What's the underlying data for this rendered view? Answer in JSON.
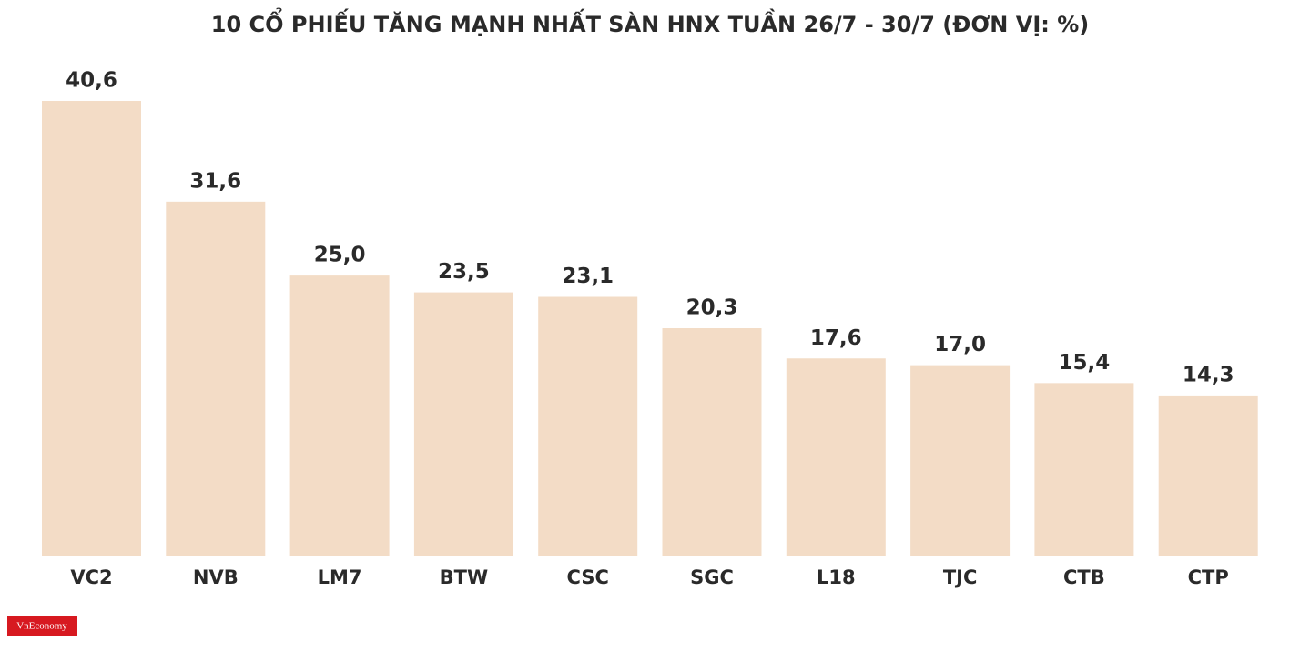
{
  "chart_data": {
    "type": "bar",
    "title": "10 CỔ PHIẾU TĂNG MẠNH NHẤT SÀN HNX TUẦN 26/7 - 30/7 (ĐƠN VỊ: %)",
    "categories": [
      "VC2",
      "NVB",
      "LM7",
      "BTW",
      "CSC",
      "SGC",
      "L18",
      "TJC",
      "CTB",
      "CTP"
    ],
    "values": [
      40.6,
      31.6,
      25.0,
      23.5,
      23.1,
      20.3,
      17.6,
      17.0,
      15.4,
      14.3
    ],
    "value_labels": [
      "40,6",
      "31,6",
      "25,0",
      "23,5",
      "23,1",
      "20,3",
      "17,6",
      "17,0",
      "15,4",
      "14,3"
    ],
    "color": "#f3dcc6"
  },
  "logo": "VnEconomy"
}
